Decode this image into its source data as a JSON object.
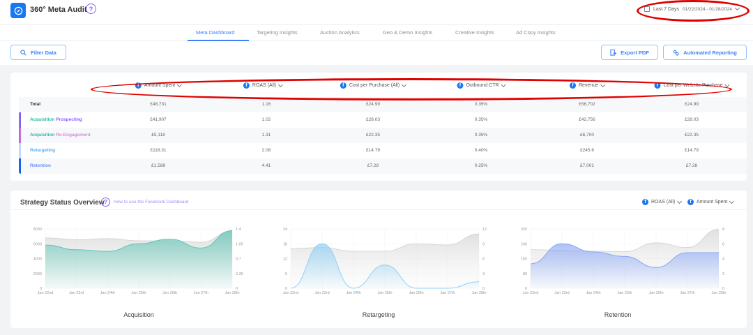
{
  "app": {
    "title": "360° Meta Audit",
    "help_icon": "question-circle-icon",
    "logo_icon": "compass-icon"
  },
  "date_range": {
    "label": "Last 7 Days",
    "range": "01/22/2024 - 01/28/2024",
    "icon": "calendar-icon"
  },
  "nav": {
    "tabs": [
      {
        "label": "Meta Dashboard",
        "active": true
      },
      {
        "label": "Targeting Insights",
        "active": false
      },
      {
        "label": "Auction Analytics",
        "active": false
      },
      {
        "label": "Geo & Demo Insights",
        "active": false
      },
      {
        "label": "Creative Insights",
        "active": false
      },
      {
        "label": "Ad Copy Insights",
        "active": false
      }
    ]
  },
  "actions": {
    "filter": "Filter Data",
    "export": "Export PDF",
    "reporting": "Automated Reporting"
  },
  "table": {
    "columns": [
      "Amount Spent",
      "ROAS (All)",
      "Cost per Purchase (All)",
      "Outbound CTR",
      "Revenue",
      "Cost per Website Purchase"
    ],
    "rows": [
      {
        "name": "Total",
        "name2": "",
        "values": [
          "£48,731",
          "1.16",
          "£24.99",
          "0.35%",
          "£56,702",
          "£24.99"
        ]
      },
      {
        "name": "Acquisition",
        "name2": "Prospecting",
        "values": [
          "£41,907",
          "1.02",
          "£28.03",
          "0.35%",
          "£42,756",
          "£28.03"
        ]
      },
      {
        "name": "Acquisition",
        "name2": "Re-Engagement",
        "values": [
          "£5,118",
          "1.31",
          "£22.35",
          "0.35%",
          "£6,700",
          "£22.35"
        ]
      },
      {
        "name": "Retargeting",
        "name2": "",
        "values": [
          "£118.31",
          "2.08",
          "£14.79",
          "0.40%",
          "£245.6",
          "£14.79"
        ]
      },
      {
        "name": "Retention",
        "name2": "",
        "values": [
          "£1,588",
          "4.41",
          "£7.28",
          "0.25%",
          "£7,001",
          "£7.28"
        ]
      }
    ]
  },
  "strategy": {
    "title": "Strategy Status Overview",
    "help_link": "How to use the Facebook Dashboard",
    "selectors": [
      "ROAS (All)",
      "Amount Spent"
    ]
  },
  "colors": {
    "accent": "#3b82f6",
    "facebook": "#1877f2",
    "purple": "#8b5cf6",
    "teal": "#2bb5a0",
    "annotation": "#e00000"
  },
  "chart_data": [
    {
      "type": "area",
      "title": "Acquisition",
      "categories": [
        "Jan 22nd",
        "Jan 23rd",
        "Jan 24th",
        "Jan 25th",
        "Jan 26th",
        "Jan 27th",
        "Jan 28th"
      ],
      "series": [
        {
          "name": "Amount Spent",
          "axis": "left",
          "values": [
            6800,
            6550,
            6700,
            6400,
            6400,
            6200,
            7700
          ]
        },
        {
          "name": "ROAS (All)",
          "axis": "right",
          "values": [
            1.02,
            0.91,
            0.87,
            1.05,
            1.16,
            0.95,
            1.36
          ]
        }
      ],
      "ylim_left": [
        0,
        8000
      ],
      "yticks_left": [
        0,
        2000,
        4000,
        6000,
        8000
      ],
      "ylim_right": [
        0,
        1.4
      ],
      "yticks_right": [
        0,
        0.35,
        0.7,
        1.05,
        1.4
      ]
    },
    {
      "type": "area",
      "title": "Retargeting",
      "categories": [
        "Jan 22nd",
        "Jan 23rd",
        "Jan 24th",
        "Jan 25th",
        "Jan 26th",
        "Jan 27th",
        "Jan 28th"
      ],
      "series": [
        {
          "name": "Amount Spent",
          "axis": "left",
          "values": [
            16,
            16.5,
            15,
            15,
            18,
            17.5,
            22
          ]
        },
        {
          "name": "ROAS (All)",
          "axis": "right",
          "values": [
            0,
            9,
            0,
            4.7,
            0,
            0,
            1.3
          ]
        }
      ],
      "ylim_left": [
        0,
        24
      ],
      "yticks_left": [
        0,
        6,
        12,
        18,
        24
      ],
      "ylim_right": [
        0,
        12
      ],
      "yticks_right": [
        0,
        3,
        6,
        9,
        12
      ]
    },
    {
      "type": "area",
      "title": "Retention",
      "categories": [
        "Jan 22nd",
        "Jan 23rd",
        "Jan 24th",
        "Jan 25th",
        "Jan 26th",
        "Jan 27th",
        "Jan 28th"
      ],
      "series": [
        {
          "name": "Amount Spent",
          "axis": "left",
          "values": [
            208,
            205,
            200,
            198,
            245,
            220,
            318
          ]
        },
        {
          "name": "ROAS (All)",
          "axis": "right",
          "values": [
            3.3,
            6.0,
            4.9,
            4.3,
            2.8,
            4.8,
            4.8
          ]
        }
      ],
      "ylim_left": [
        0,
        320
      ],
      "yticks_left": [
        0,
        80,
        160,
        240,
        320
      ],
      "ylim_right": [
        0,
        8
      ],
      "yticks_right": [
        0,
        2,
        4,
        6,
        8
      ]
    }
  ]
}
